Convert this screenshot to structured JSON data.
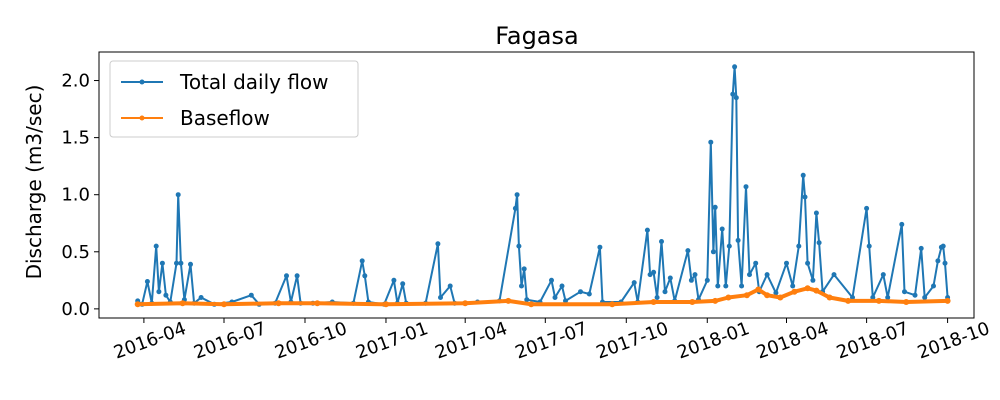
{
  "chart_data": {
    "type": "line",
    "title": "Fagasa",
    "xlabel": "",
    "ylabel": "Discharge (m3/sec)",
    "xlim": [
      "2016-02-10",
      "2018-10-31"
    ],
    "ylim": [
      -0.08,
      2.25
    ],
    "yticks": [
      0.0,
      0.5,
      1.0,
      1.5,
      2.0
    ],
    "ytick_labels": [
      "0.0",
      "0.5",
      "1.0",
      "1.5",
      "2.0"
    ],
    "xticks": [
      "2016-04-01",
      "2016-07-01",
      "2016-10-01",
      "2017-01-01",
      "2017-04-01",
      "2017-07-01",
      "2017-10-01",
      "2018-01-01",
      "2018-04-01",
      "2018-07-01",
      "2018-10-01"
    ],
    "xtick_labels": [
      "2016-04",
      "2016-07",
      "2016-10",
      "2017-01",
      "2017-04",
      "2017-07",
      "2017-10",
      "2018-01",
      "2018-04",
      "2018-07",
      "2018-10"
    ],
    "grid": false,
    "legend": "upper-left",
    "series": [
      {
        "name": "Total daily flow",
        "color": "#1f77b4",
        "points": [
          [
            "2016-03-25",
            0.07
          ],
          [
            "2016-03-30",
            0.04
          ],
          [
            "2016-04-05",
            0.24
          ],
          [
            "2016-04-10",
            0.05
          ],
          [
            "2016-04-15",
            0.55
          ],
          [
            "2016-04-18",
            0.15
          ],
          [
            "2016-04-22",
            0.4
          ],
          [
            "2016-04-26",
            0.12
          ],
          [
            "2016-05-01",
            0.06
          ],
          [
            "2016-05-08",
            0.4
          ],
          [
            "2016-05-10",
            1.0
          ],
          [
            "2016-05-13",
            0.4
          ],
          [
            "2016-05-17",
            0.08
          ],
          [
            "2016-05-24",
            0.39
          ],
          [
            "2016-05-28",
            0.05
          ],
          [
            "2016-06-05",
            0.1
          ],
          [
            "2016-06-20",
            0.04
          ],
          [
            "2016-07-10",
            0.06
          ],
          [
            "2016-08-01",
            0.12
          ],
          [
            "2016-08-10",
            0.04
          ],
          [
            "2016-08-28",
            0.05
          ],
          [
            "2016-09-10",
            0.29
          ],
          [
            "2016-09-15",
            0.06
          ],
          [
            "2016-09-22",
            0.29
          ],
          [
            "2016-09-26",
            0.05
          ],
          [
            "2016-10-10",
            0.05
          ],
          [
            "2016-11-01",
            0.06
          ],
          [
            "2016-11-25",
            0.05
          ],
          [
            "2016-12-05",
            0.42
          ],
          [
            "2016-12-08",
            0.29
          ],
          [
            "2016-12-12",
            0.06
          ],
          [
            "2016-12-30",
            0.04
          ],
          [
            "2017-01-10",
            0.25
          ],
          [
            "2017-01-14",
            0.05
          ],
          [
            "2017-01-20",
            0.22
          ],
          [
            "2017-01-24",
            0.05
          ],
          [
            "2017-02-15",
            0.05
          ],
          [
            "2017-03-01",
            0.57
          ],
          [
            "2017-03-04",
            0.1
          ],
          [
            "2017-03-15",
            0.2
          ],
          [
            "2017-03-20",
            0.05
          ],
          [
            "2017-04-15",
            0.06
          ],
          [
            "2017-05-10",
            0.07
          ],
          [
            "2017-05-28",
            0.88
          ],
          [
            "2017-05-30",
            1.0
          ],
          [
            "2017-06-01",
            0.55
          ],
          [
            "2017-06-04",
            0.2
          ],
          [
            "2017-06-07",
            0.35
          ],
          [
            "2017-06-10",
            0.08
          ],
          [
            "2017-06-25",
            0.06
          ],
          [
            "2017-07-08",
            0.25
          ],
          [
            "2017-07-12",
            0.1
          ],
          [
            "2017-07-20",
            0.2
          ],
          [
            "2017-07-24",
            0.07
          ],
          [
            "2017-08-10",
            0.15
          ],
          [
            "2017-08-20",
            0.13
          ],
          [
            "2017-09-01",
            0.54
          ],
          [
            "2017-09-04",
            0.06
          ],
          [
            "2017-09-25",
            0.06
          ],
          [
            "2017-10-10",
            0.23
          ],
          [
            "2017-10-14",
            0.06
          ],
          [
            "2017-10-25",
            0.69
          ],
          [
            "2017-10-28",
            0.3
          ],
          [
            "2017-11-01",
            0.32
          ],
          [
            "2017-11-05",
            0.1
          ],
          [
            "2017-11-10",
            0.59
          ],
          [
            "2017-11-14",
            0.15
          ],
          [
            "2017-11-20",
            0.27
          ],
          [
            "2017-11-25",
            0.07
          ],
          [
            "2017-12-10",
            0.51
          ],
          [
            "2017-12-14",
            0.25
          ],
          [
            "2017-12-18",
            0.3
          ],
          [
            "2017-12-22",
            0.08
          ],
          [
            "2018-01-01",
            0.25
          ],
          [
            "2018-01-05",
            1.46
          ],
          [
            "2018-01-08",
            0.5
          ],
          [
            "2018-01-10",
            0.89
          ],
          [
            "2018-01-13",
            0.2
          ],
          [
            "2018-01-18",
            0.7
          ],
          [
            "2018-01-22",
            0.2
          ],
          [
            "2018-01-26",
            0.55
          ],
          [
            "2018-01-30",
            1.88
          ],
          [
            "2018-02-01",
            2.12
          ],
          [
            "2018-02-03",
            1.85
          ],
          [
            "2018-02-05",
            0.6
          ],
          [
            "2018-02-09",
            0.2
          ],
          [
            "2018-02-14",
            1.07
          ],
          [
            "2018-02-18",
            0.3
          ],
          [
            "2018-02-25",
            0.4
          ],
          [
            "2018-03-01",
            0.15
          ],
          [
            "2018-03-10",
            0.3
          ],
          [
            "2018-03-20",
            0.14
          ],
          [
            "2018-04-01",
            0.4
          ],
          [
            "2018-04-08",
            0.2
          ],
          [
            "2018-04-15",
            0.55
          ],
          [
            "2018-04-20",
            1.17
          ],
          [
            "2018-04-22",
            0.98
          ],
          [
            "2018-04-25",
            0.4
          ],
          [
            "2018-05-01",
            0.25
          ],
          [
            "2018-05-05",
            0.84
          ],
          [
            "2018-05-08",
            0.58
          ],
          [
            "2018-05-12",
            0.15
          ],
          [
            "2018-05-25",
            0.3
          ],
          [
            "2018-06-15",
            0.1
          ],
          [
            "2018-07-01",
            0.88
          ],
          [
            "2018-07-04",
            0.55
          ],
          [
            "2018-07-08",
            0.1
          ],
          [
            "2018-07-20",
            0.3
          ],
          [
            "2018-07-25",
            0.1
          ],
          [
            "2018-08-10",
            0.74
          ],
          [
            "2018-08-13",
            0.15
          ],
          [
            "2018-08-25",
            0.12
          ],
          [
            "2018-09-01",
            0.53
          ],
          [
            "2018-09-05",
            0.1
          ],
          [
            "2018-09-15",
            0.2
          ],
          [
            "2018-09-20",
            0.42
          ],
          [
            "2018-09-24",
            0.54
          ],
          [
            "2018-09-26",
            0.55
          ],
          [
            "2018-09-28",
            0.4
          ],
          [
            "2018-10-01",
            0.1
          ]
        ]
      },
      {
        "name": "Baseflow",
        "color": "#ff7f0e",
        "points": [
          [
            "2016-03-25",
            0.04
          ],
          [
            "2016-05-15",
            0.05
          ],
          [
            "2016-07-01",
            0.04
          ],
          [
            "2016-09-01",
            0.05
          ],
          [
            "2016-10-15",
            0.05
          ],
          [
            "2017-01-01",
            0.04
          ],
          [
            "2017-04-01",
            0.05
          ],
          [
            "2017-05-20",
            0.07
          ],
          [
            "2017-06-15",
            0.04
          ],
          [
            "2017-09-15",
            0.04
          ],
          [
            "2017-11-01",
            0.06
          ],
          [
            "2017-12-15",
            0.06
          ],
          [
            "2018-01-10",
            0.07
          ],
          [
            "2018-01-25",
            0.1
          ],
          [
            "2018-02-15",
            0.12
          ],
          [
            "2018-02-28",
            0.17
          ],
          [
            "2018-03-10",
            0.12
          ],
          [
            "2018-03-25",
            0.1
          ],
          [
            "2018-04-10",
            0.15
          ],
          [
            "2018-04-25",
            0.18
          ],
          [
            "2018-05-05",
            0.16
          ],
          [
            "2018-05-20",
            0.1
          ],
          [
            "2018-06-10",
            0.07
          ],
          [
            "2018-07-15",
            0.07
          ],
          [
            "2018-08-15",
            0.06
          ],
          [
            "2018-10-01",
            0.07
          ]
        ]
      }
    ]
  }
}
